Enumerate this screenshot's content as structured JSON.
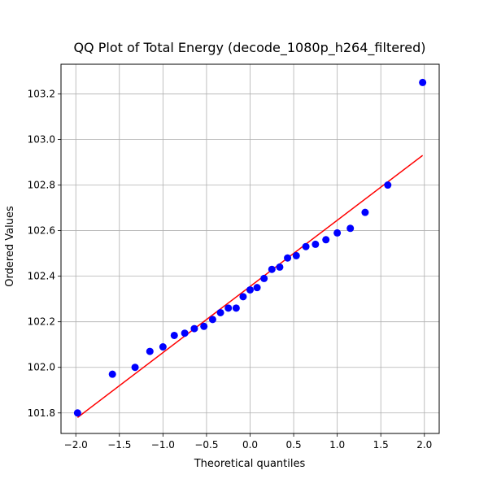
{
  "chart_data": {
    "type": "scatter",
    "title": "QQ Plot of Total Energy (decode_1080p_h264_filtered)",
    "xlabel": "Theoretical quantiles",
    "ylabel": "Ordered Values",
    "xlim": [
      -2.17,
      2.17
    ],
    "ylim": [
      101.71,
      103.33
    ],
    "xticks": [
      -2.0,
      -1.5,
      -1.0,
      -0.5,
      0.0,
      0.5,
      1.0,
      1.5,
      2.0
    ],
    "xtick_labels": [
      "−2.0",
      "−1.5",
      "−1.0",
      "−0.5",
      "0.0",
      "0.5",
      "1.0",
      "1.5",
      "2.0"
    ],
    "yticks": [
      101.8,
      102.0,
      102.2,
      102.4,
      102.6,
      102.8,
      103.0,
      103.2
    ],
    "ytick_labels": [
      "101.8",
      "102.0",
      "102.2",
      "102.4",
      "102.6",
      "102.8",
      "103.0",
      "103.2"
    ],
    "grid": true,
    "colors": {
      "points": "#0000ff",
      "fit_line": "#ff0000",
      "grid": "#b0b0b0"
    },
    "series": [
      {
        "marker": "circle",
        "x": [
          -1.98,
          -1.58,
          -1.32,
          -1.15,
          -1.0,
          -0.87,
          -0.75,
          -0.64,
          -0.53,
          -0.43,
          -0.34,
          -0.25,
          -0.16,
          -0.08,
          0.0,
          0.08,
          0.16,
          0.25,
          0.34,
          0.43,
          0.53,
          0.64,
          0.75,
          0.87,
          1.0,
          1.15,
          1.32,
          1.58,
          1.98
        ],
        "y": [
          101.8,
          101.97,
          102.0,
          102.07,
          102.09,
          102.14,
          102.15,
          102.17,
          102.18,
          102.21,
          102.24,
          102.26,
          102.26,
          102.31,
          102.34,
          102.35,
          102.39,
          102.43,
          102.44,
          102.48,
          102.49,
          102.53,
          102.54,
          102.56,
          102.59,
          102.61,
          102.68,
          102.8,
          103.25
        ]
      }
    ],
    "fit_line": {
      "x": [
        -1.98,
        1.98
      ],
      "y": [
        101.78,
        102.93
      ]
    }
  }
}
